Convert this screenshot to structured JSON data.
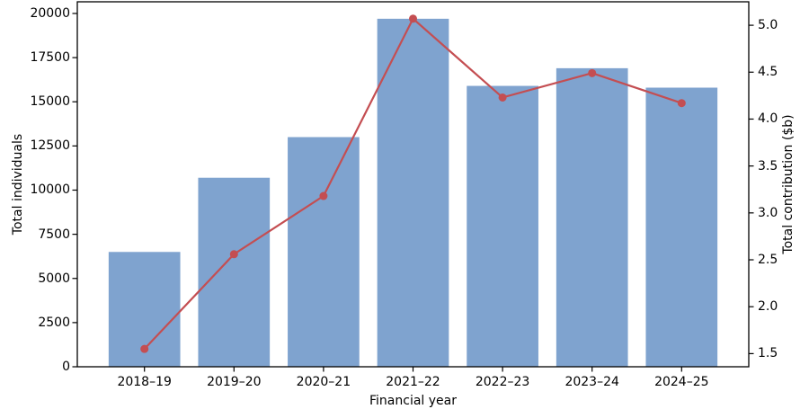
{
  "chart_data": {
    "type": "bar",
    "categories": [
      "2018–19",
      "2019–20",
      "2020–21",
      "2021–22",
      "2022–23",
      "2023–24",
      "2024–25"
    ],
    "series": [
      {
        "name": "Total individuals",
        "type": "bar",
        "axis": "left",
        "color": "#7fa3cf",
        "values": [
          6500,
          10700,
          13000,
          19700,
          15900,
          16900,
          15800
        ]
      },
      {
        "name": "Total contribution ($b)",
        "type": "line",
        "axis": "right",
        "color": "#c44e52",
        "values": [
          1.55,
          2.56,
          3.18,
          5.07,
          4.23,
          4.49,
          4.17
        ]
      }
    ],
    "title": "",
    "xlabel": "Financial year",
    "ylabel_left": "Total individuals",
    "ylabel_right": "Total contribution ($b)",
    "y_left_ticks": [
      0,
      2500,
      5000,
      7500,
      10000,
      12500,
      15000,
      17500,
      20000
    ],
    "y_right_ticks": [
      1.5,
      2.0,
      2.5,
      3.0,
      3.5,
      4.0,
      4.5,
      5.0
    ],
    "ylim_left": [
      0,
      20660
    ],
    "ylim_right": [
      1.36,
      5.25
    ],
    "grid": "off",
    "legend": "none",
    "spine_color": "#000000"
  }
}
